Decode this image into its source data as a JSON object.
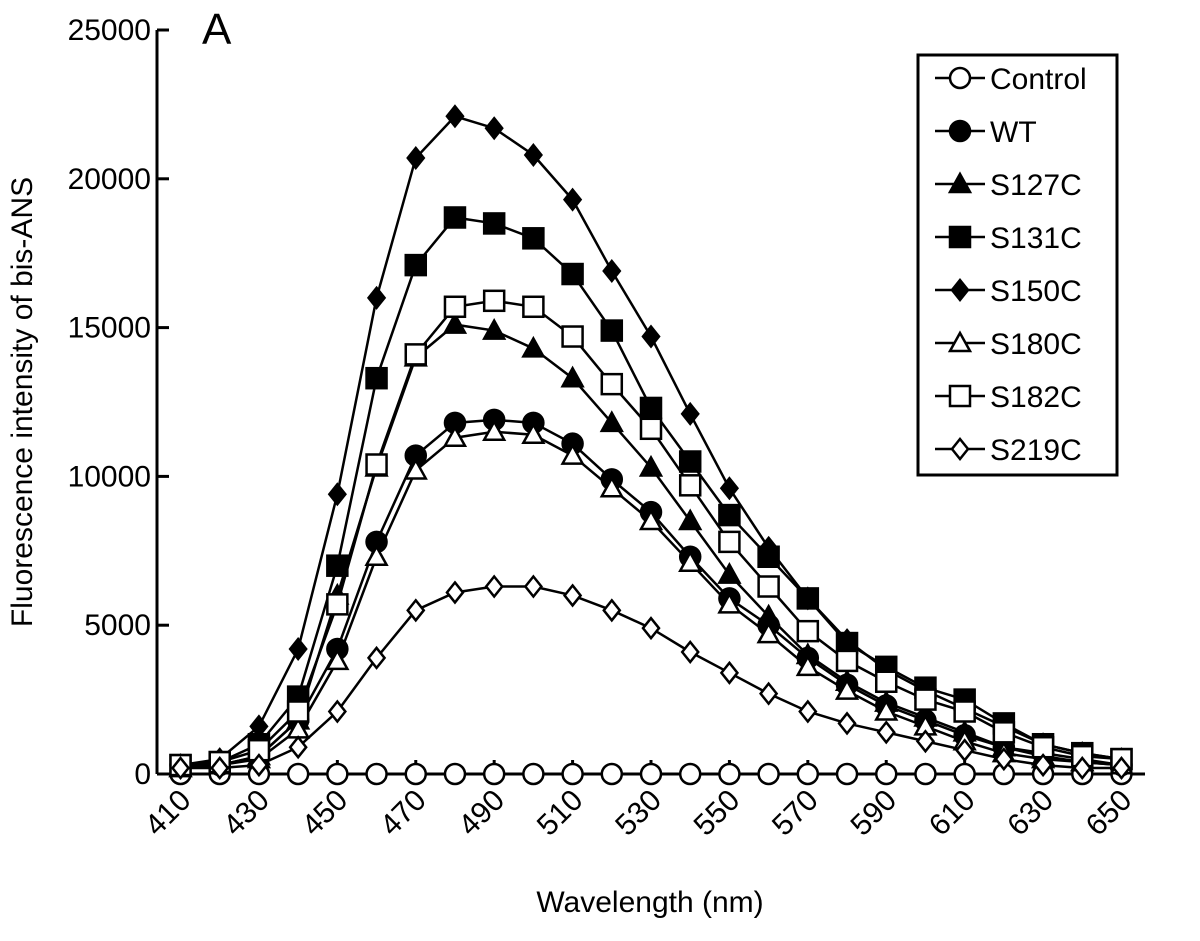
{
  "chart_data": {
    "type": "line",
    "annotation": "A",
    "x_label": "Wavelength (nm)",
    "y_label": "Fluorescence intensity of bis-ANS",
    "x": [
      410,
      420,
      430,
      440,
      450,
      460,
      470,
      480,
      490,
      500,
      510,
      520,
      530,
      540,
      550,
      560,
      570,
      580,
      590,
      600,
      610,
      620,
      630,
      640,
      650
    ],
    "xlim": [
      404,
      656
    ],
    "xticks": [
      410,
      430,
      450,
      470,
      490,
      510,
      530,
      550,
      570,
      590,
      610,
      630,
      650
    ],
    "ylim": [
      0,
      25000
    ],
    "yticks": [
      0,
      5000,
      10000,
      15000,
      20000,
      25000
    ],
    "legend": "upper right",
    "series": [
      {
        "name": "Control",
        "color": "#000000",
        "marker": "circle",
        "filled": false,
        "values": [
          0,
          0,
          0,
          0,
          0,
          0,
          0,
          0,
          0,
          0,
          0,
          0,
          0,
          0,
          0,
          0,
          0,
          0,
          0,
          0,
          0,
          0,
          0,
          0,
          0
        ]
      },
      {
        "name": "WT",
        "color": "#000000",
        "marker": "circle",
        "filled": true,
        "values": [
          300,
          300,
          600,
          1800,
          4200,
          7800,
          10700,
          11800,
          11900,
          11800,
          11100,
          9900,
          8800,
          7300,
          5900,
          5000,
          3900,
          3000,
          2300,
          1800,
          1300,
          900,
          700,
          500,
          300
        ]
      },
      {
        "name": "S127C",
        "color": "#000000",
        "marker": "triangle",
        "filled": true,
        "values": [
          200,
          300,
          600,
          1800,
          6000,
          10300,
          14000,
          15100,
          14900,
          14300,
          13300,
          11800,
          10300,
          8500,
          6700,
          5300,
          4000,
          3100,
          2400,
          1900,
          1400,
          900,
          600,
          400,
          300
        ]
      },
      {
        "name": "S131C",
        "color": "#000000",
        "marker": "square",
        "filled": true,
        "values": [
          300,
          400,
          1000,
          2600,
          7000,
          13300,
          17100,
          18700,
          18500,
          18000,
          16800,
          14900,
          12300,
          10500,
          8700,
          7300,
          5900,
          4400,
          3600,
          2900,
          2500,
          1700,
          1000,
          700,
          500
        ]
      },
      {
        "name": "S150C",
        "color": "#000000",
        "marker": "diamond",
        "filled": true,
        "values": [
          300,
          500,
          1600,
          4200,
          9400,
          16000,
          20700,
          22100,
          21700,
          20800,
          19300,
          16900,
          14700,
          12100,
          9600,
          7600,
          5900,
          4500,
          3500,
          2800,
          2200,
          1600,
          1000,
          700,
          500
        ]
      },
      {
        "name": "S180C",
        "color": "#000000",
        "marker": "triangle",
        "filled": false,
        "values": [
          200,
          300,
          500,
          1500,
          3800,
          7300,
          10200,
          11300,
          11500,
          11400,
          10700,
          9600,
          8500,
          7100,
          5700,
          4700,
          3600,
          2800,
          2100,
          1600,
          1100,
          700,
          500,
          400,
          300
        ]
      },
      {
        "name": "S182C",
        "color": "#000000",
        "marker": "square",
        "filled": false,
        "values": [
          300,
          400,
          800,
          2100,
          5700,
          10400,
          14100,
          15700,
          15900,
          15700,
          14700,
          13100,
          11600,
          9700,
          7800,
          6300,
          4800,
          3800,
          3100,
          2500,
          2100,
          1400,
          900,
          600,
          500
        ]
      },
      {
        "name": "S219C",
        "color": "#000000",
        "marker": "diamond",
        "filled": false,
        "values": [
          200,
          200,
          300,
          900,
          2100,
          3900,
          5500,
          6100,
          6300,
          6300,
          6000,
          5500,
          4900,
          4100,
          3400,
          2700,
          2100,
          1700,
          1400,
          1100,
          800,
          500,
          300,
          200,
          200
        ]
      }
    ]
  }
}
